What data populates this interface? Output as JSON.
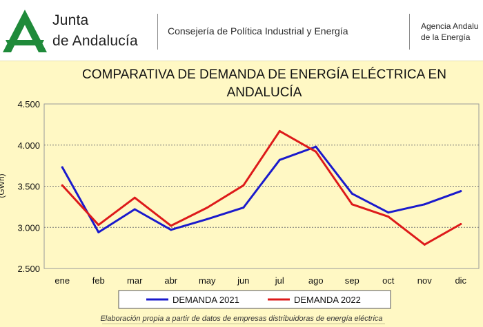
{
  "header": {
    "org_line_1": "Junta",
    "org_line_2": "de Andalucía",
    "consejeria": "Consejería de Política Industrial y Energía",
    "agencia_line_1": "Agencia Andalu",
    "agencia_line_2": "de la Energía",
    "logo_color": "#1f8a3a"
  },
  "footer": {
    "note": "Elaboración propia a partir de datos de empresas distribuidoras de energía eléctrica"
  },
  "chart_data": {
    "type": "line",
    "title_line_1": "COMPARATIVA DE DEMANDA DE ENERGÍA ELÉCTRICA EN",
    "title_line_2": "ANDALUCÍA",
    "ylabel": "(GWh)",
    "categories": [
      "ene",
      "feb",
      "mar",
      "abr",
      "may",
      "jun",
      "jul",
      "ago",
      "sep",
      "oct",
      "nov",
      "dic"
    ],
    "ylim": [
      2500,
      4500
    ],
    "yticks": [
      2500,
      3000,
      3500,
      4000,
      4500
    ],
    "ytick_labels": [
      "2.500",
      "3.000",
      "3.500",
      "4.000",
      "4.500"
    ],
    "grid": true,
    "legend_position": "bottom",
    "series": [
      {
        "name": "DEMANDA 2021",
        "color": "#1a1acc",
        "values": [
          3730,
          2940,
          3220,
          2970,
          3100,
          3240,
          3820,
          3980,
          3410,
          3180,
          3280,
          3440
        ]
      },
      {
        "name": "DEMANDA 2022",
        "color": "#dd1a1a",
        "values": [
          3510,
          3030,
          3360,
          3020,
          3240,
          3510,
          4170,
          3920,
          3280,
          3130,
          2790,
          3040
        ]
      }
    ]
  }
}
